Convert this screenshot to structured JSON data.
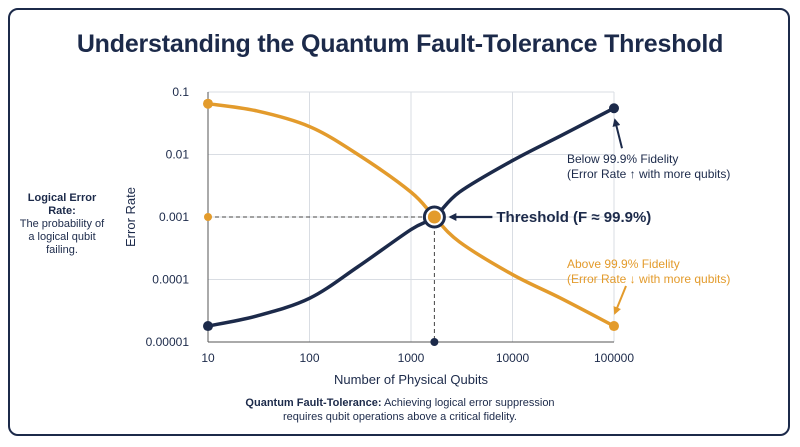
{
  "title": "Understanding the Quantum Fault-Tolerance Threshold",
  "side_note": {
    "heading": "Logical Error Rate:",
    "body": "The probability of a logical qubit failing."
  },
  "caption": {
    "bold": "Quantum Fault-Tolerance:",
    "line1": "Achieving logical error suppression",
    "line2": "requires qubit operations above a critical fidelity."
  },
  "colors": {
    "navy": "#1c2a4a",
    "orange": "#e39b2c",
    "grid": "#d9dde3"
  },
  "chart_data": {
    "type": "line",
    "xlabel": "Number of Physical Qubits",
    "ylabel": "Error Rate",
    "x_scale": "log",
    "y_scale": "log",
    "xlim": [
      10,
      100000
    ],
    "ylim": [
      1e-05,
      0.1
    ],
    "x_ticks": [
      "10",
      "100",
      "1000",
      "10000",
      "100000"
    ],
    "y_ticks": [
      "0.1",
      "0.01",
      "0.001",
      "0.0001",
      "0.00001"
    ],
    "grid": true,
    "series": [
      {
        "color": "#1c2a4a",
        "x": [
          10,
          30,
          100,
          300,
          1000,
          1700,
          3000,
          10000,
          30000,
          100000
        ],
        "y": [
          1.8e-05,
          2.6e-05,
          5e-05,
          0.00016,
          0.00063,
          0.001,
          0.0025,
          0.008,
          0.02,
          0.055
        ]
      },
      {
        "color": "#e39b2c",
        "x": [
          10,
          30,
          100,
          300,
          1000,
          1700,
          3000,
          10000,
          30000,
          100000
        ],
        "y": [
          0.065,
          0.05,
          0.028,
          0.01,
          0.0025,
          0.001,
          0.0004,
          0.00012,
          5e-05,
          1.8e-05
        ]
      }
    ],
    "threshold": {
      "x": 1700,
      "y": 0.001,
      "label": "Threshold (F ≈ 99.9%)"
    },
    "annotations": [
      {
        "line1": "Below 99.9% Fidelity",
        "line2": "(Error Rate ↑ with more qubits)",
        "color": "#1c2a4a"
      },
      {
        "line1": "Above 99.9% Fidelity",
        "line2": "(Error Rate ↓ with more qubits)",
        "color": "#e39b2c"
      }
    ]
  }
}
